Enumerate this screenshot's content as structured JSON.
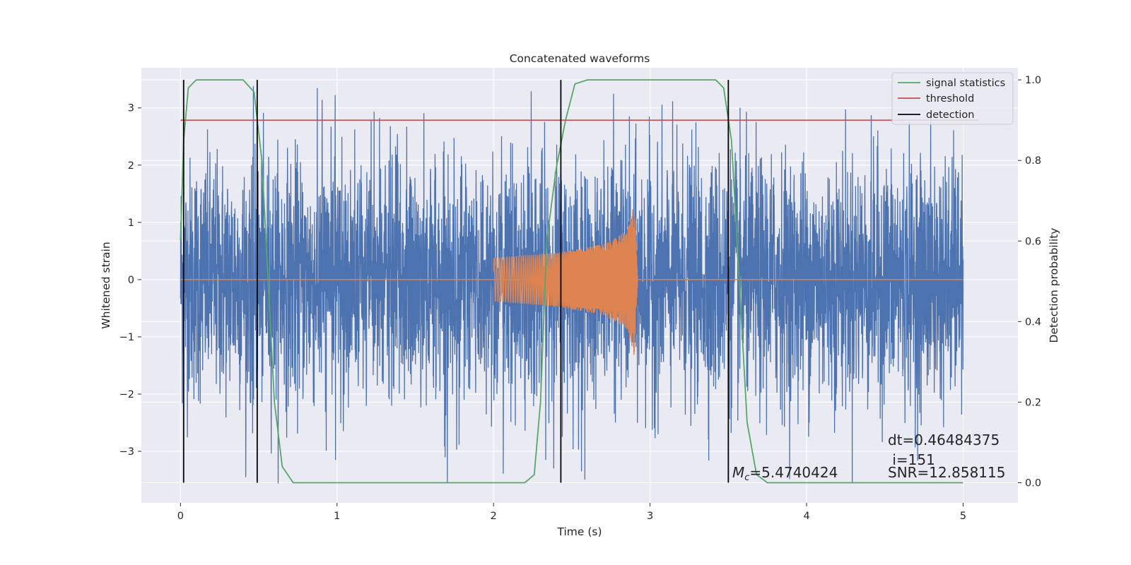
{
  "chart_data": {
    "type": "line",
    "title": "Concatenated waveforms",
    "xlabel": "Time (s)",
    "ylabel": "Whitened strain",
    "y2label": "Detection probability",
    "xlim": [
      -0.25,
      5.35
    ],
    "ylim": [
      -3.9,
      3.7
    ],
    "y2lim": [
      -0.05,
      1.03
    ],
    "xticks": [
      0,
      1,
      2,
      3,
      4,
      5
    ],
    "yticks": [
      -3,
      -2,
      -1,
      0,
      1,
      2,
      3
    ],
    "y2ticks": [
      0.0,
      0.2,
      0.4,
      0.6,
      0.8,
      1.0
    ],
    "grid": true,
    "legend": {
      "placement": "top-right",
      "entries": [
        {
          "label": "signal statistics",
          "color": "#55a868"
        },
        {
          "label": "threshold",
          "color": "#c44e52"
        },
        {
          "label": "detection",
          "color": "#000000"
        }
      ]
    },
    "colors": {
      "noise": "#4c72b0",
      "signal": "#dd8452",
      "statistic": "#55a868",
      "threshold": "#c44e52",
      "detection": "#000000",
      "plot_bg": "#eaeaf2",
      "grid": "#ffffff"
    },
    "noise": {
      "x_range": [
        0,
        5
      ],
      "amplitude_range": [
        -3.6,
        3.4
      ]
    },
    "injected_signal": {
      "x_range": [
        2.0,
        2.92
      ],
      "envelope": [
        {
          "t": 2.0,
          "amp": 0.38
        },
        {
          "t": 2.4,
          "amp": 0.47
        },
        {
          "t": 2.7,
          "amp": 0.62
        },
        {
          "t": 2.85,
          "amp": 0.85
        },
        {
          "t": 2.9,
          "amp": 1.35
        },
        {
          "t": 2.92,
          "amp": 0.1
        }
      ]
    },
    "threshold": {
      "x": [
        0,
        5.1
      ],
      "y2": 0.9
    },
    "detections_x": [
      0.02,
      0.49,
      2.43,
      3.5
    ],
    "signal_statistics": [
      {
        "t": 0.0,
        "p": 0.6
      },
      {
        "t": 0.02,
        "p": 0.85
      },
      {
        "t": 0.05,
        "p": 0.98
      },
      {
        "t": 0.1,
        "p": 1.0
      },
      {
        "t": 0.4,
        "p": 1.0
      },
      {
        "t": 0.47,
        "p": 0.97
      },
      {
        "t": 0.52,
        "p": 0.8
      },
      {
        "t": 0.56,
        "p": 0.5
      },
      {
        "t": 0.6,
        "p": 0.2
      },
      {
        "t": 0.65,
        "p": 0.04
      },
      {
        "t": 0.72,
        "p": 0.0
      },
      {
        "t": 2.2,
        "p": 0.0
      },
      {
        "t": 2.26,
        "p": 0.02
      },
      {
        "t": 2.3,
        "p": 0.2
      },
      {
        "t": 2.34,
        "p": 0.6
      },
      {
        "t": 2.4,
        "p": 0.78
      },
      {
        "t": 2.46,
        "p": 0.9
      },
      {
        "t": 2.52,
        "p": 0.99
      },
      {
        "t": 2.6,
        "p": 1.0
      },
      {
        "t": 3.42,
        "p": 1.0
      },
      {
        "t": 3.47,
        "p": 0.98
      },
      {
        "t": 3.52,
        "p": 0.85
      },
      {
        "t": 3.57,
        "p": 0.5
      },
      {
        "t": 3.62,
        "p": 0.15
      },
      {
        "t": 3.68,
        "p": 0.02
      },
      {
        "t": 3.75,
        "p": 0.0
      },
      {
        "t": 5.0,
        "p": 0.0
      }
    ],
    "annotations": {
      "mc_symbol": "M",
      "mc_sub": "c",
      "mc_value": "=5.4740424",
      "dt": "dt=0.46484375",
      "i": " i=151",
      "snr": "SNR=12.858115"
    }
  }
}
